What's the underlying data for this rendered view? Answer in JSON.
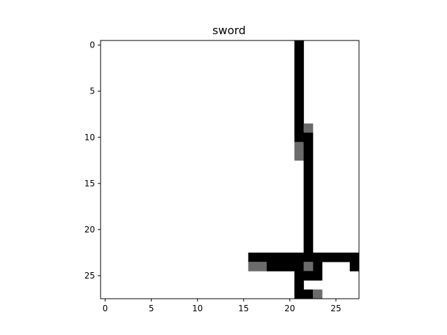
{
  "chart_data": {
    "type": "heatmap",
    "title": "sword",
    "xlabel": "",
    "ylabel": "",
    "grid_size": [
      28,
      28
    ],
    "xlim": [
      -0.5,
      27.5
    ],
    "ylim": [
      27.5,
      -0.5
    ],
    "x_ticks": [
      0,
      5,
      10,
      15,
      20,
      25
    ],
    "y_ticks": [
      0,
      5,
      10,
      15,
      20,
      25
    ],
    "colormap": "gray_r",
    "value_range": [
      0,
      1
    ],
    "colors": {
      "background": "#ffffff",
      "full": "#000000",
      "partial": "#6b6b6b"
    },
    "pixels": [
      {
        "row": 0,
        "cols": [
          21
        ],
        "value": 1
      },
      {
        "row": 1,
        "cols": [
          21
        ],
        "value": 1
      },
      {
        "row": 2,
        "cols": [
          21
        ],
        "value": 1
      },
      {
        "row": 3,
        "cols": [
          21
        ],
        "value": 1
      },
      {
        "row": 4,
        "cols": [
          21
        ],
        "value": 1
      },
      {
        "row": 5,
        "cols": [
          21
        ],
        "value": 1
      },
      {
        "row": 6,
        "cols": [
          21
        ],
        "value": 1
      },
      {
        "row": 7,
        "cols": [
          21
        ],
        "value": 1
      },
      {
        "row": 8,
        "cols": [
          21
        ],
        "value": 1
      },
      {
        "row": 9,
        "cols": [
          21
        ],
        "value": 1
      },
      {
        "row": 9,
        "cols": [
          22
        ],
        "value": 0.6
      },
      {
        "row": 10,
        "cols": [
          21,
          22
        ],
        "value": 1
      },
      {
        "row": 11,
        "cols": [
          21
        ],
        "value": 0.6
      },
      {
        "row": 11,
        "cols": [
          22
        ],
        "value": 1
      },
      {
        "row": 12,
        "cols": [
          21
        ],
        "value": 0.6
      },
      {
        "row": 12,
        "cols": [
          22
        ],
        "value": 1
      },
      {
        "row": 13,
        "cols": [
          22
        ],
        "value": 1
      },
      {
        "row": 14,
        "cols": [
          22
        ],
        "value": 1
      },
      {
        "row": 15,
        "cols": [
          22
        ],
        "value": 1
      },
      {
        "row": 16,
        "cols": [
          22
        ],
        "value": 1
      },
      {
        "row": 17,
        "cols": [
          22
        ],
        "value": 1
      },
      {
        "row": 18,
        "cols": [
          22
        ],
        "value": 1
      },
      {
        "row": 19,
        "cols": [
          22
        ],
        "value": 1
      },
      {
        "row": 20,
        "cols": [
          22
        ],
        "value": 1
      },
      {
        "row": 21,
        "cols": [
          22
        ],
        "value": 1
      },
      {
        "row": 22,
        "cols": [
          22
        ],
        "value": 1
      },
      {
        "row": 23,
        "cols": [
          16,
          17,
          18,
          19,
          20,
          21,
          22,
          23,
          24,
          25,
          26,
          27
        ],
        "value": 1
      },
      {
        "row": 24,
        "cols": [
          16,
          17
        ],
        "value": 0.6
      },
      {
        "row": 24,
        "cols": [
          18,
          19,
          20,
          21,
          23,
          27
        ],
        "value": 1
      },
      {
        "row": 24,
        "cols": [
          22
        ],
        "value": 0.6
      },
      {
        "row": 25,
        "cols": [
          21,
          22,
          23
        ],
        "value": 1
      },
      {
        "row": 26,
        "cols": [
          21
        ],
        "value": 1
      },
      {
        "row": 27,
        "cols": [
          21,
          22
        ],
        "value": 1
      },
      {
        "row": 27,
        "cols": [
          23
        ],
        "value": 0.6
      }
    ]
  }
}
